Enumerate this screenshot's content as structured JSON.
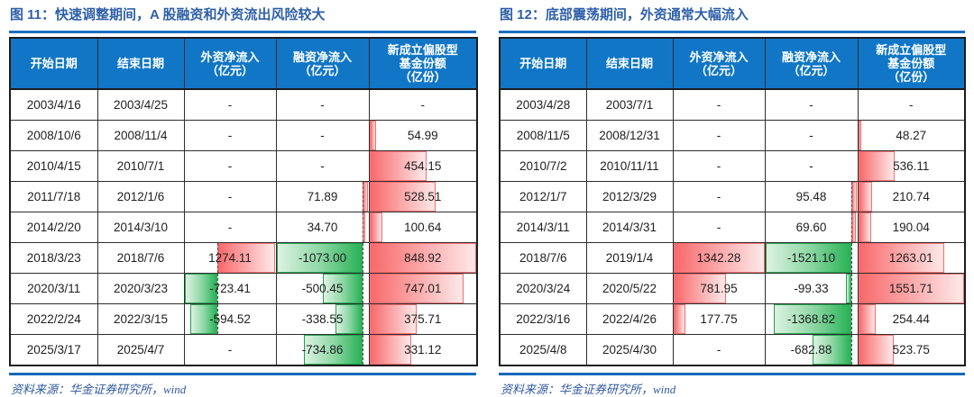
{
  "colors": {
    "header_bg": "#1176c6",
    "title_color": "#2e5fa8",
    "rule_color": "#1b6fc0",
    "source_color": "#31599f",
    "pos_bar": "#f8696b",
    "pos_bar_light": "#fde9e9",
    "neg_bar": "#28b256",
    "neg_bar_light": "#ddf2e2"
  },
  "tables": [
    {
      "title": "图 11：快速调整期间，A 股融资和外资流出风险较大",
      "source": "资料来源：华金证券研究所，wind",
      "columns": [
        [
          "开始日期"
        ],
        [
          "结束日期"
        ],
        [
          "外资净流入",
          "（亿元）"
        ],
        [
          "融资净流入",
          "（亿元）"
        ],
        [
          "新成立偏股型",
          "基金份额",
          "（亿份）"
        ]
      ],
      "rows": [
        [
          "2003/4/16",
          "2003/4/25",
          "-",
          "-",
          "-"
        ],
        [
          "2008/10/6",
          "2008/11/4",
          "-",
          "-",
          "54.99"
        ],
        [
          "2010/4/15",
          "2010/7/1",
          "-",
          "-",
          "454.15"
        ],
        [
          "2011/7/18",
          "2012/1/6",
          "-",
          "71.89",
          "528.51"
        ],
        [
          "2014/2/20",
          "2014/3/10",
          "-",
          "34.70",
          "100.64"
        ],
        [
          "2018/3/23",
          "2018/7/6",
          "1274.11",
          "-1073.00",
          "848.92"
        ],
        [
          "2020/3/11",
          "2020/3/23",
          "-723.41",
          "-500.45",
          "747.01"
        ],
        [
          "2022/2/24",
          "2022/3/15",
          "-594.52",
          "-338.55",
          "375.71"
        ],
        [
          "2025/3/17",
          "2025/4/7",
          "-",
          "-734.86",
          "331.12"
        ]
      ]
    },
    {
      "title": "图 12：底部震荡期间，外资通常大幅流入",
      "source": "资料来源：华金证券研究所，wind",
      "columns": [
        [
          "开始日期"
        ],
        [
          "结束日期"
        ],
        [
          "外资净流入",
          "（亿元）"
        ],
        [
          "融资净流入",
          "（亿元）"
        ],
        [
          "新成立偏股型",
          "基金份额",
          "（亿份）"
        ]
      ],
      "rows": [
        [
          "2003/4/28",
          "2003/7/1",
          "-",
          "-",
          "-"
        ],
        [
          "2008/11/5",
          "2008/12/31",
          "-",
          "-",
          "48.27"
        ],
        [
          "2010/7/2",
          "2010/11/11",
          "-",
          "-",
          "536.11"
        ],
        [
          "2012/1/7",
          "2012/3/29",
          "-",
          "95.48",
          "210.74"
        ],
        [
          "2014/3/11",
          "2014/3/31",
          "-",
          "69.60",
          "190.04"
        ],
        [
          "2018/7/6",
          "2019/1/4",
          "1342.28",
          "-1521.10",
          "1263.01"
        ],
        [
          "2020/3/24",
          "2020/5/22",
          "781.95",
          "-99.33",
          "1551.71"
        ],
        [
          "2022/3/16",
          "2022/4/26",
          "177.75",
          "-1368.82",
          "254.44"
        ],
        [
          "2025/4/8",
          "2025/4/30",
          "-",
          "-682.88",
          "523.75"
        ]
      ]
    }
  ]
}
